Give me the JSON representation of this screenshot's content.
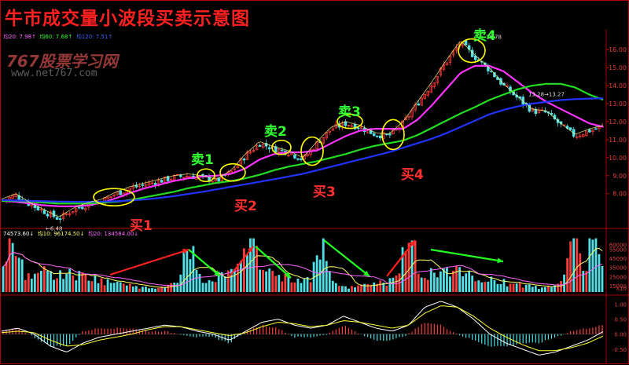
{
  "title": "牛市成交量小波段买卖示意图",
  "watermark": {
    "name": "767股票学习网",
    "url": "www.net767.com"
  },
  "legend_price": [
    {
      "text": "均20: 7.98↑",
      "color": "#ff66ff"
    },
    {
      "text": "均60: 7.68↑",
      "color": "#33ff33"
    },
    {
      "text": "均120: 7.51↑",
      "color": "#4466ff"
    }
  ],
  "legend_volume": [
    {
      "text": "74573.60↓",
      "color": "#ffffff"
    },
    {
      "text": "均10: 96174.50↓",
      "color": "#ffff66"
    },
    {
      "text": "均20: 134584.00↓",
      "color": "#ff66ff"
    }
  ],
  "colors": {
    "up": "#ff3c3c",
    "down": "#4fe0e8",
    "ma20": "#ff33ff",
    "ma60": "#22dd22",
    "ma120": "#2233ff",
    "signal_ring": "#ffff00"
  },
  "signals": {
    "sell": [
      "卖1",
      "卖2",
      "卖3",
      "卖4"
    ],
    "buy": [
      "买1",
      "买2",
      "买3",
      "买4"
    ]
  },
  "chart_data": [
    {
      "type": "candlestick",
      "yticks": [
        8.0,
        9.0,
        10.0,
        11.0,
        12.0,
        13.0,
        14.0,
        15.0,
        16.0
      ],
      "ylim": [
        6.2,
        17.1
      ],
      "annotations": [
        {
          "text": "←6.48"
        },
        {
          "text": "←16.78"
        },
        {
          "text": "13.28→13.27"
        }
      ],
      "close_path": [
        7.6,
        7.9,
        7.4,
        7.0,
        6.6,
        7.1,
        7.4,
        7.6,
        8.0,
        8.3,
        8.5,
        8.7,
        8.9,
        9.0,
        8.9,
        8.7,
        9.2,
        10.1,
        10.8,
        10.5,
        10.3,
        9.9,
        10.8,
        11.6,
        11.9,
        11.7,
        11.3,
        11.2,
        11.9,
        13.0,
        14.1,
        15.3,
        16.4,
        15.6,
        14.9,
        14.0,
        13.3,
        12.6,
        12.5,
        11.8,
        11.2,
        11.5,
        11.7
      ],
      "series": [
        {
          "name": "均20",
          "values": [
            7.6,
            7.55,
            7.45,
            7.35,
            7.3,
            7.3,
            7.35,
            7.5,
            7.75,
            8.05,
            8.3,
            8.5,
            8.7,
            8.85,
            8.95,
            9.0,
            9.1,
            9.4,
            9.9,
            10.2,
            10.3,
            10.3,
            10.4,
            10.8,
            11.2,
            11.5,
            11.6,
            11.6,
            11.6,
            12.1,
            12.9,
            13.8,
            14.7,
            15.1,
            15.1,
            14.8,
            14.2,
            13.6,
            13.1,
            12.7,
            12.3,
            11.9,
            11.7
          ]
        },
        {
          "name": "均60",
          "values": [
            7.6,
            7.6,
            7.55,
            7.5,
            7.45,
            7.45,
            7.45,
            7.5,
            7.55,
            7.65,
            7.8,
            7.95,
            8.1,
            8.3,
            8.45,
            8.6,
            8.7,
            8.85,
            9.05,
            9.3,
            9.5,
            9.65,
            9.8,
            10.0,
            10.2,
            10.45,
            10.65,
            10.8,
            10.95,
            11.25,
            11.65,
            12.05,
            12.45,
            12.8,
            13.2,
            13.5,
            13.8,
            14.0,
            14.1,
            14.1,
            13.9,
            13.5,
            13.2
          ]
        },
        {
          "name": "均120",
          "values": [
            7.65,
            7.62,
            7.6,
            7.58,
            7.56,
            7.55,
            7.55,
            7.56,
            7.58,
            7.62,
            7.68,
            7.76,
            7.86,
            7.98,
            8.1,
            8.24,
            8.38,
            8.52,
            8.66,
            8.8,
            8.95,
            9.1,
            9.3,
            9.5,
            9.7,
            9.9,
            10.1,
            10.3,
            10.55,
            10.8,
            11.05,
            11.35,
            11.7,
            12.05,
            12.4,
            12.65,
            12.85,
            13.0,
            13.1,
            13.2,
            13.25,
            13.28,
            13.3
          ]
        }
      ]
    },
    {
      "type": "bar",
      "yticks": [
        15000,
        25000,
        35000,
        45000,
        55000,
        60000
      ],
      "ylim": [
        8000,
        70000
      ],
      "x_scale_label": "X10",
      "volume_peaks": [
        60000,
        55000,
        67000,
        62000,
        58000,
        57000,
        66000
      ]
    },
    {
      "type": "bar",
      "yticks": [
        -0.5,
        0,
        0.5,
        1.0
      ],
      "ylim": [
        -0.95,
        1.25
      ],
      "ytick_labels": [
        "-0.50",
        "0.00",
        "0.50",
        "1.00"
      ],
      "oscillator_dif": [
        0.1,
        0.2,
        0.0,
        -0.4,
        -0.6,
        -0.3,
        -0.1,
        0.0,
        0.1,
        0.2,
        0.3,
        0.25,
        0.1,
        0.0,
        -0.2,
        0.1,
        0.4,
        0.5,
        0.3,
        0.2,
        0.3,
        0.6,
        0.4,
        0.2,
        0.1,
        0.3,
        0.9,
        1.1,
        0.9,
        0.5,
        0.0,
        -0.3,
        -0.5,
        -0.7,
        -0.6,
        -0.4,
        -0.2,
        0.1
      ],
      "oscillator_dea": [
        0.05,
        0.1,
        0.05,
        -0.2,
        -0.4,
        -0.35,
        -0.2,
        -0.1,
        0.0,
        0.15,
        0.25,
        0.25,
        0.15,
        0.05,
        -0.05,
        0.05,
        0.25,
        0.4,
        0.35,
        0.25,
        0.3,
        0.45,
        0.4,
        0.3,
        0.2,
        0.3,
        0.7,
        0.95,
        0.9,
        0.6,
        0.2,
        -0.1,
        -0.35,
        -0.55,
        -0.55,
        -0.45,
        -0.3,
        -0.05
      ]
    }
  ]
}
